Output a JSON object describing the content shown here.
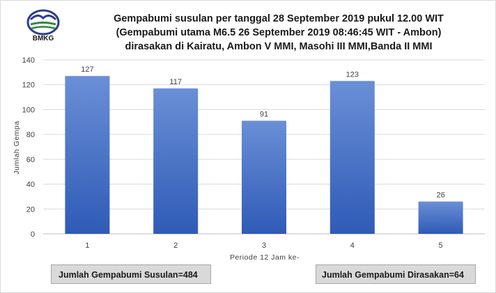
{
  "logo": {
    "icon": "bmkg-logo-icon",
    "text": "BMKG"
  },
  "title_lines": [
    "Gempabumi susulan per tanggal 28 September 2019 pukul 12.00 WIT",
    "(Gempabumi utama M6.5 26 September 2019 08:46:45 WIT - Ambon)",
    "dirasakan di Kairatu, Ambon V MMI, Masohi III MMI,Banda II MMI"
  ],
  "chart_data": {
    "type": "bar",
    "categories": [
      "1",
      "2",
      "3",
      "4",
      "5"
    ],
    "values": [
      127,
      117,
      91,
      123,
      26
    ],
    "data_labels": [
      "127",
      "117",
      "91",
      "123",
      "26"
    ],
    "xlabel": "Periode 12 Jam ke-",
    "ylabel": "Jumlah Gempa",
    "ylim": [
      0,
      140
    ],
    "yticks": [
      0,
      20,
      40,
      60,
      80,
      100,
      120,
      140
    ],
    "grid": true,
    "legend": "none",
    "bar_color": "#4472c4"
  },
  "summary": {
    "total_aftershocks": "Jumlah Gempabumi Susulan=484",
    "total_felt": "Jumlah Gempabumi Dirasakan=64"
  }
}
